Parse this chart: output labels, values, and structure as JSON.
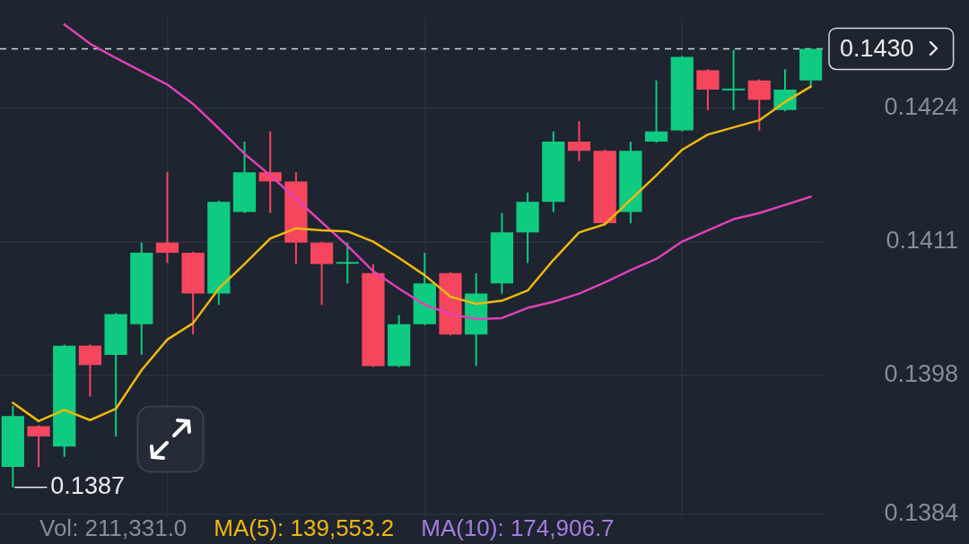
{
  "chart_data": {
    "type": "candlestick",
    "categories": [
      null,
      null,
      null,
      null,
      null,
      null,
      null,
      null,
      null,
      null,
      null,
      null,
      null,
      null,
      null,
      null,
      null,
      null,
      null,
      null,
      null,
      null,
      null,
      null,
      null,
      null,
      null,
      null,
      null,
      null,
      null,
      null
    ],
    "ohlc": [
      [
        0.1389,
        0.1395,
        0.1387,
        0.1394
      ],
      [
        0.1393,
        0.13931,
        0.1389,
        0.1392
      ],
      [
        0.1391,
        0.1401,
        0.139,
        0.14009
      ],
      [
        0.14009,
        0.1401,
        0.13959,
        0.1399
      ],
      [
        0.14,
        0.14041,
        0.1392,
        0.1404
      ],
      [
        0.1403,
        0.1411,
        0.14,
        0.141
      ],
      [
        0.1411,
        0.14179,
        0.1409,
        0.141
      ],
      [
        0.141,
        0.14101,
        0.1402,
        0.1406
      ],
      [
        0.1406,
        0.14151,
        0.14049,
        0.1415
      ],
      [
        0.1414,
        0.14209,
        0.14139,
        0.14179
      ],
      [
        0.14179,
        0.14219,
        0.14139,
        0.1417
      ],
      [
        0.1417,
        0.14179,
        0.14089,
        0.1411
      ],
      [
        0.1411,
        0.14111,
        0.14049,
        0.14089
      ],
      [
        0.1409,
        0.1411,
        0.1407,
        0.14091
      ],
      [
        0.1408,
        0.14089,
        0.13988,
        0.13989
      ],
      [
        0.13989,
        0.14039,
        0.13988,
        0.1403
      ],
      [
        0.1403,
        0.141,
        0.14029,
        0.1407
      ],
      [
        0.1408,
        0.14081,
        0.14019,
        0.1402
      ],
      [
        0.1402,
        0.1408,
        0.13989,
        0.1406
      ],
      [
        0.1407,
        0.14139,
        0.1406,
        0.1412
      ],
      [
        0.1412,
        0.14159,
        0.1409,
        0.1415
      ],
      [
        0.1415,
        0.14219,
        0.1414,
        0.14209
      ],
      [
        0.14209,
        0.14229,
        0.1419,
        0.142
      ],
      [
        0.142,
        0.14201,
        0.14128,
        0.14129
      ],
      [
        0.1414,
        0.14209,
        0.14129,
        0.142
      ],
      [
        0.14209,
        0.14269,
        0.14208,
        0.14219
      ],
      [
        0.1422,
        0.14293,
        0.14219,
        0.14292
      ],
      [
        0.14279,
        0.1428,
        0.1424,
        0.1426
      ],
      [
        0.1426,
        0.14299,
        0.1424,
        0.14261
      ],
      [
        0.14269,
        0.1427,
        0.1422,
        0.1425
      ],
      [
        0.1424,
        0.1428,
        0.14239,
        0.1426
      ],
      [
        0.14269,
        0.143,
        0.14263,
        0.143
      ]
    ],
    "colors": [
      "#0ecb81",
      "#f6465d",
      "#0ecb81",
      "#f6465d",
      "#0ecb81",
      "#0ecb81",
      "#f6465d",
      "#f6465d",
      "#0ecb81",
      "#0ecb81",
      "#f6465d",
      "#f6465d",
      "#f6465d",
      "#0ecb81",
      "#f6465d",
      "#0ecb81",
      "#0ecb81",
      "#f6465d",
      "#0ecb81",
      "#0ecb81",
      "#0ecb81",
      "#0ecb81",
      "#f6465d",
      "#f6465d",
      "#0ecb81",
      "#0ecb81",
      "#0ecb81",
      "#f6465d",
      "#0ecb81",
      "#f6465d",
      "#0ecb81",
      "#0ecb81"
    ],
    "series": [
      {
        "type": "line",
        "color": "#f0b90b",
        "values": [
          0.13953,
          0.13935,
          0.13946,
          0.13936,
          0.13947,
          0.13985,
          0.14015,
          0.14031,
          0.14065,
          0.14089,
          0.14114,
          0.14124,
          0.14122,
          0.14121,
          0.14111,
          0.14095,
          0.14078,
          0.14057,
          0.1405,
          0.14053,
          0.14063,
          0.14093,
          0.1412,
          0.14128,
          0.14152,
          0.14176,
          0.14201,
          0.14216,
          0.14223,
          0.1423,
          0.14248,
          0.14263
        ]
      },
      {
        "type": "line",
        "color": "#e040b8",
        "values": [
          null,
          null,
          0.14324,
          0.14305,
          0.14291,
          0.14278,
          0.14265,
          0.14246,
          0.14222,
          0.14197,
          0.14176,
          0.14153,
          0.1413,
          0.14107,
          0.14082,
          0.14065,
          0.14049,
          0.1404,
          0.14035,
          0.14036,
          0.14046,
          0.14052,
          0.1406,
          0.14071,
          0.14083,
          0.14094,
          0.14111,
          0.14122,
          0.14133,
          0.14139,
          0.14147,
          0.14155
        ]
      }
    ],
    "ylim": [
      0.1384,
      0.14331
    ],
    "yticks": [
      {
        "value": 0.14242,
        "label": "0.1424"
      },
      {
        "value": 0.14111,
        "label": "0.1411"
      },
      0.1398,
      {
        "value": 0.13844,
        "label": "0.1384"
      }
    ],
    "grid": true,
    "tick_labels": "y",
    "marker": "none",
    "line_style": "solid",
    "ref_lines": [
      {
        "axis": "y",
        "value": 0.143,
        "label": "0.1430",
        "color": "#d5d8dc",
        "line_style": "dashed"
      }
    ],
    "annotations": [
      "0.1387",
      "Vol: 211,331.0",
      "MA(5): 139,553.2",
      "MA(10): 174,906.7"
    ]
  }
}
